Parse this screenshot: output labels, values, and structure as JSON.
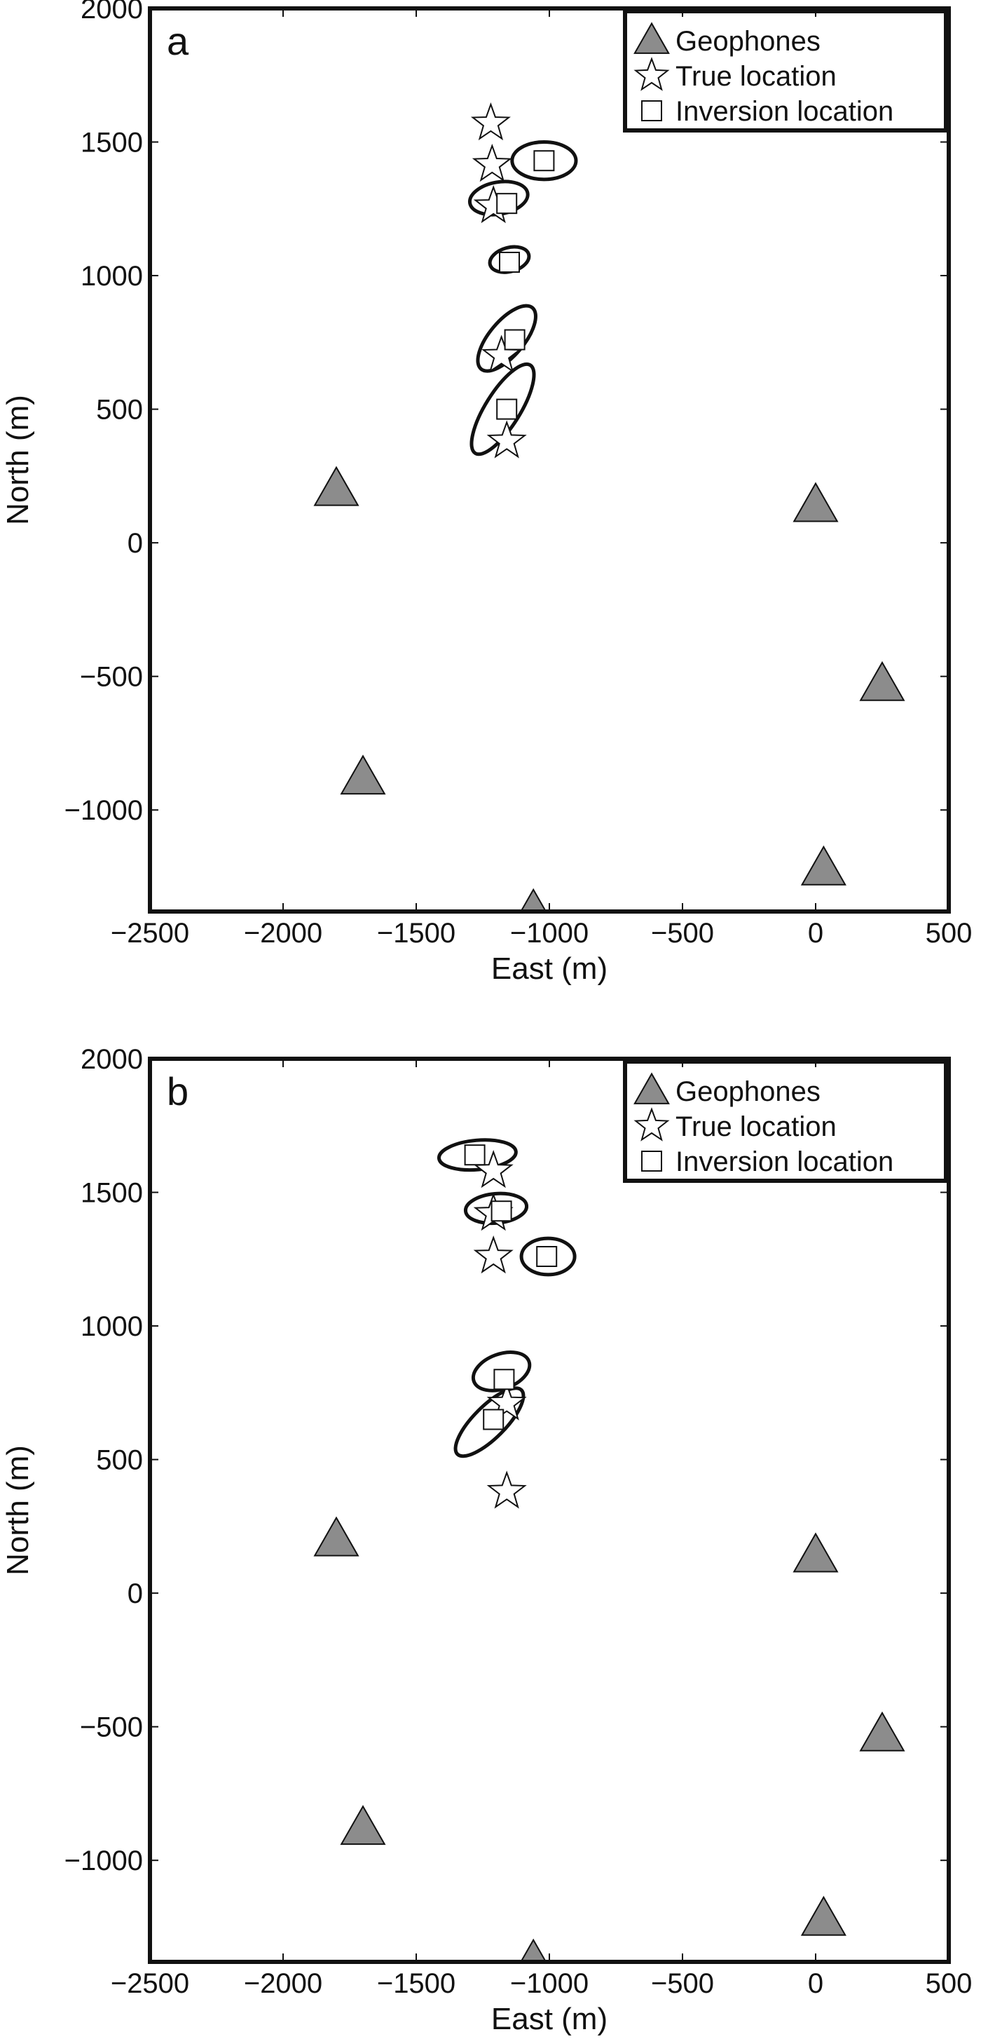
{
  "chart_data": [
    {
      "type": "scatter",
      "panel_label": "a",
      "xlabel": "East (m)",
      "ylabel": "North (m)",
      "xlim": [
        -2500,
        500
      ],
      "ylim": [
        -1380,
        2000
      ],
      "x_ticks": [
        -2500,
        -2000,
        -1500,
        -1000,
        -500,
        0,
        500
      ],
      "y_ticks": [
        -1000,
        -500,
        0,
        500,
        1000,
        1500,
        2000
      ],
      "x_tick_labels": [
        "−2500",
        "−2000",
        "−1500",
        "−1000",
        "−500",
        "0",
        "500"
      ],
      "y_tick_labels": [
        "−1000",
        "−500",
        "0",
        "500",
        "1000",
        "1500",
        "2000"
      ],
      "grid": false,
      "legend_position": "top-right",
      "legend": [
        {
          "marker": "triangle",
          "label": "Geophones"
        },
        {
          "marker": "star",
          "label": "True location"
        },
        {
          "marker": "square",
          "label": "Inversion location"
        }
      ],
      "geophones": [
        {
          "x": -1800,
          "y": 200
        },
        {
          "x": 0,
          "y": 140
        },
        {
          "x": 250,
          "y": -530
        },
        {
          "x": -1700,
          "y": -880
        },
        {
          "x": 30,
          "y": -1220
        },
        {
          "x": -1060,
          "y": -1380
        }
      ],
      "true_locations": [
        {
          "x": -1220,
          "y": 1570
        },
        {
          "x": -1215,
          "y": 1415
        },
        {
          "x": -1210,
          "y": 1260
        },
        {
          "x": -1180,
          "y": 700
        },
        {
          "x": -1160,
          "y": 380
        }
      ],
      "inversion_locations": [
        {
          "x": -1020,
          "y": 1430
        },
        {
          "x": -1160,
          "y": 1270
        },
        {
          "x": -1150,
          "y": 1050
        },
        {
          "x": -1130,
          "y": 760
        },
        {
          "x": -1160,
          "y": 500
        }
      ],
      "error_ellipses": [
        {
          "cx": -1020,
          "cy": 1430,
          "rx": 120,
          "ry": 70,
          "angle": 0
        },
        {
          "cx": -1190,
          "cy": 1290,
          "rx": 110,
          "ry": 60,
          "angle": -10
        },
        {
          "cx": -1150,
          "cy": 1060,
          "rx": 75,
          "ry": 45,
          "angle": -15
        },
        {
          "cx": -1160,
          "cy": 765,
          "rx": 150,
          "ry": 65,
          "angle": -50
        },
        {
          "cx": -1175,
          "cy": 500,
          "rx": 195,
          "ry": 65,
          "angle": -58
        }
      ]
    },
    {
      "type": "scatter",
      "panel_label": "b",
      "xlabel": "East (m)",
      "ylabel": "North (m)",
      "xlim": [
        -2500,
        500
      ],
      "ylim": [
        -1380,
        2000
      ],
      "x_ticks": [
        -2500,
        -2000,
        -1500,
        -1000,
        -500,
        0,
        500
      ],
      "y_ticks": [
        -1000,
        -500,
        0,
        500,
        1000,
        1500,
        2000
      ],
      "x_tick_labels": [
        "−2500",
        "−2000",
        "−1500",
        "−1000",
        "−500",
        "0",
        "500"
      ],
      "y_tick_labels": [
        "−1000",
        "−500",
        "0",
        "500",
        "1000",
        "1500",
        "2000"
      ],
      "grid": false,
      "legend_position": "top-right",
      "legend": [
        {
          "marker": "triangle",
          "label": "Geophones"
        },
        {
          "marker": "star",
          "label": "True location"
        },
        {
          "marker": "square",
          "label": "Inversion location"
        }
      ],
      "geophones": [
        {
          "x": -1800,
          "y": 200
        },
        {
          "x": 0,
          "y": 140
        },
        {
          "x": 250,
          "y": -530
        },
        {
          "x": -1700,
          "y": -880
        },
        {
          "x": 30,
          "y": -1220
        },
        {
          "x": -1060,
          "y": -1380
        }
      ],
      "true_locations": [
        {
          "x": -1210,
          "y": 1580
        },
        {
          "x": -1210,
          "y": 1420
        },
        {
          "x": -1210,
          "y": 1260
        },
        {
          "x": -1160,
          "y": 710
        },
        {
          "x": -1160,
          "y": 380
        }
      ],
      "inversion_locations": [
        {
          "x": -1280,
          "y": 1640
        },
        {
          "x": -1180,
          "y": 1430
        },
        {
          "x": -1010,
          "y": 1260
        },
        {
          "x": -1170,
          "y": 800
        },
        {
          "x": -1210,
          "y": 650
        }
      ],
      "error_ellipses": [
        {
          "cx": -1270,
          "cy": 1640,
          "rx": 145,
          "ry": 55,
          "angle": -5
        },
        {
          "cx": -1200,
          "cy": 1440,
          "rx": 115,
          "ry": 55,
          "angle": -5
        },
        {
          "cx": -1005,
          "cy": 1260,
          "rx": 100,
          "ry": 68,
          "angle": 0
        },
        {
          "cx": -1180,
          "cy": 830,
          "rx": 110,
          "ry": 65,
          "angle": -20
        },
        {
          "cx": -1225,
          "cy": 640,
          "rx": 170,
          "ry": 60,
          "angle": -45
        }
      ]
    }
  ]
}
